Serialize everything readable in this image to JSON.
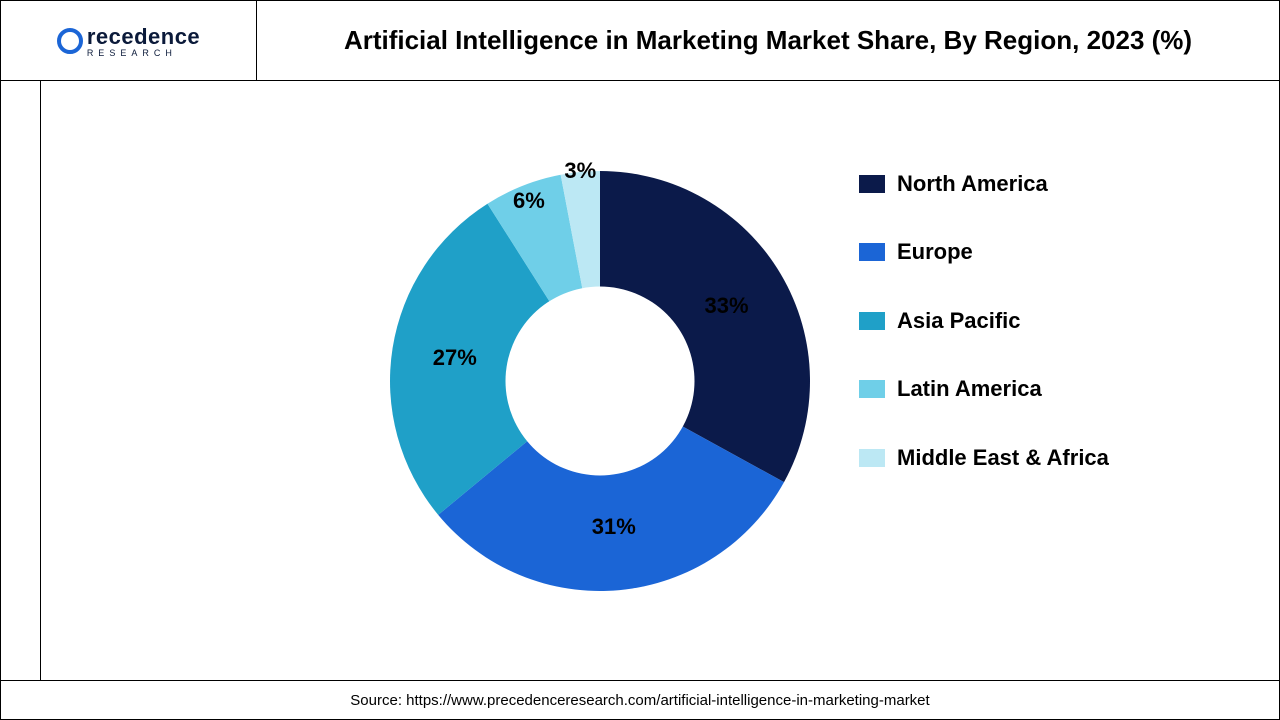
{
  "logo": {
    "main": "recedence",
    "sub": "RESEARCH",
    "ring_color": "#1b65d6",
    "text_color": "#0b1a3a"
  },
  "title": "Artificial Intelligence in Marketing Market Share, By Region, 2023 (%)",
  "chart": {
    "type": "donut",
    "inner_radius_ratio": 0.45,
    "background": "#ffffff",
    "label_fontsize": 22,
    "label_color": "#000000",
    "slices": [
      {
        "label": "North America",
        "value": 33,
        "color": "#0b1a4a",
        "display": "33%"
      },
      {
        "label": "Europe",
        "value": 31,
        "color": "#1b65d6",
        "display": "31%"
      },
      {
        "label": "Asia Pacific",
        "value": 27,
        "color": "#1fa0c8",
        "display": "27%"
      },
      {
        "label": "Latin America",
        "value": 6,
        "color": "#6fcfe8",
        "display": "6%"
      },
      {
        "label": "Middle East & Africa",
        "value": 3,
        "color": "#bce8f4",
        "display": "3%"
      }
    ]
  },
  "legend": {
    "fontsize": 22,
    "fontweight": "bold",
    "text_color": "#000000"
  },
  "source": "Source: https://www.precedenceresearch.com/artificial-intelligence-in-marketing-market"
}
